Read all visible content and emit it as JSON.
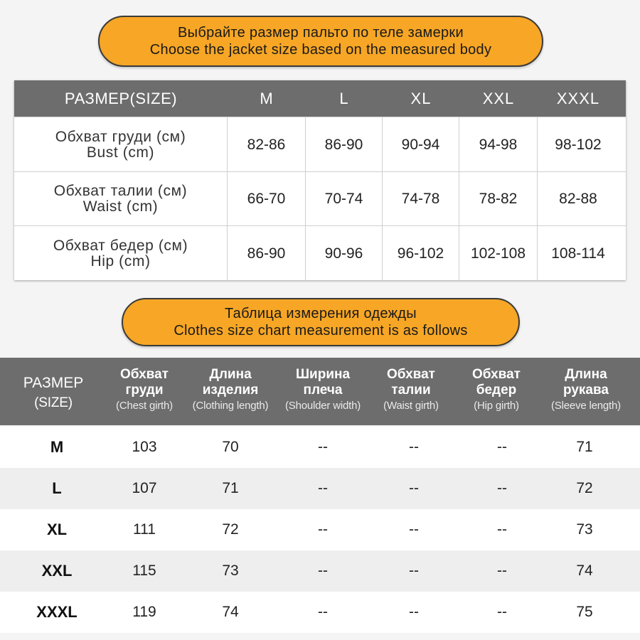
{
  "banner1": {
    "ru": "Выбрайте размер пальто по теле замерки",
    "en": "Choose the jacket size based on the measured body"
  },
  "body_table": {
    "header_label": "РАЗМЕР(SIZE)",
    "sizes": [
      "M",
      "L",
      "XL",
      "XXL",
      "XXXL"
    ],
    "rows": [
      {
        "ru": "Обхват груди (см)",
        "en": "Bust (cm)",
        "values": [
          "82-86",
          "86-90",
          "90-94",
          "94-98",
          "98-102"
        ]
      },
      {
        "ru": "Обхват талии (см)",
        "en": "Waist (cm)",
        "values": [
          "66-70",
          "70-74",
          "74-78",
          "78-82",
          "82-88"
        ]
      },
      {
        "ru": "Обхват бедер (см)",
        "en": "Hip (cm)",
        "values": [
          "86-90",
          "90-96",
          "96-102",
          "102-108",
          "108-114"
        ]
      }
    ]
  },
  "banner2": {
    "ru": "Таблица измерения одежды",
    "en": "Clothes size chart measurement is as follows"
  },
  "clothes_table": {
    "headers": [
      {
        "ru": "РАЗМЕР",
        "en": "(SIZE)"
      },
      {
        "ru1": "Обхват",
        "ru2": "груди",
        "en": "(Chest girth)"
      },
      {
        "ru1": "Длина",
        "ru2": "изделия",
        "en": "(Clothing length)"
      },
      {
        "ru1": "Ширина",
        "ru2": "плеча",
        "en": "(Shoulder width)"
      },
      {
        "ru1": "Обхват",
        "ru2": "талии",
        "en": "(Waist girth)"
      },
      {
        "ru1": "Обхват",
        "ru2": "бедер",
        "en": "(Hip girth)"
      },
      {
        "ru1": "Длина",
        "ru2": "рукава",
        "en": "(Sleeve length)"
      }
    ],
    "rows": [
      [
        "M",
        "103",
        "70",
        "--",
        "--",
        "--",
        "71"
      ],
      [
        "L",
        "107",
        "71",
        "--",
        "--",
        "--",
        "72"
      ],
      [
        "XL",
        "111",
        "72",
        "--",
        "--",
        "--",
        "73"
      ],
      [
        "XXL",
        "115",
        "73",
        "--",
        "--",
        "--",
        "74"
      ],
      [
        "XXXL",
        "119",
        "74",
        "--",
        "--",
        "--",
        "75"
      ]
    ]
  },
  "colors": {
    "banner_fill": "#f7a625",
    "header_fill": "#6d6d6d"
  }
}
